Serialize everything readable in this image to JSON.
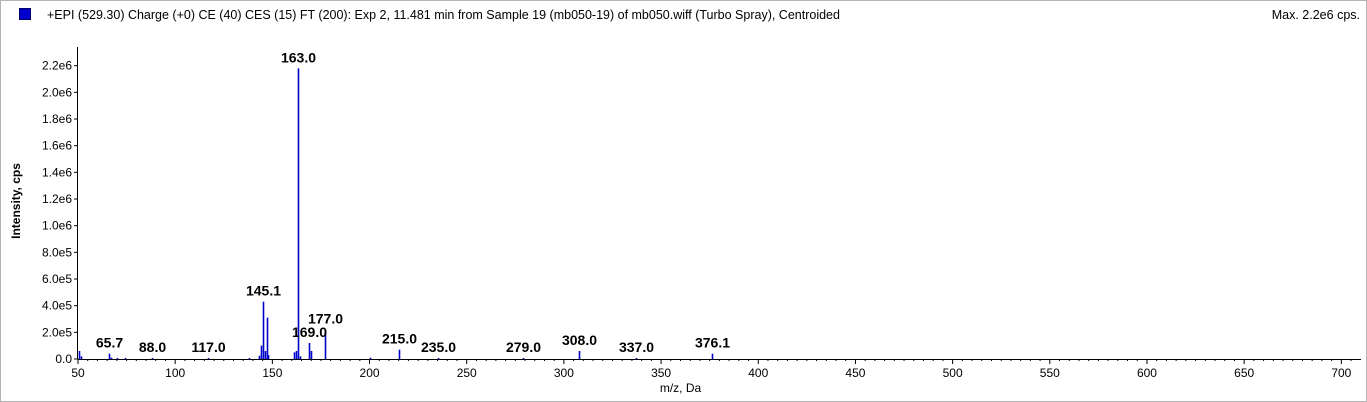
{
  "header": {
    "title": "+EPI (529.30) Charge (+0) CE (40) CES (15) FT (200): Exp 2, 11.481 min from Sample 19 (mb050-19) of mb050.wiff (Turbo Spray), Centroided",
    "max_label": "Max. 2.2e6 cps.",
    "series_color": "#0000cc"
  },
  "chart_data": {
    "type": "bar",
    "title": "+EPI (529.30) Charge (+0) CE (40) CES (15) FT (200): Exp 2, 11.481 min from Sample 19 (mb050-19) of mb050.wiff (Turbo Spray), Centroided",
    "xlabel": "m/z, Da",
    "ylabel": "Intensity, cps",
    "xlim": [
      50,
      706
    ],
    "ylim": [
      0,
      2250000
    ],
    "x_ticks": [
      50,
      100,
      150,
      200,
      250,
      300,
      350,
      400,
      450,
      500,
      550,
      600,
      650,
      700
    ],
    "x_tick_labels": [
      "50",
      "100",
      "150",
      "200",
      "250",
      "300",
      "350",
      "400",
      "450",
      "500",
      "550",
      "600",
      "650",
      "700"
    ],
    "y_ticks": [
      0,
      200000,
      400000,
      600000,
      800000,
      1000000,
      1200000,
      1400000,
      1600000,
      1800000,
      2000000,
      2200000
    ],
    "y_tick_labels": [
      "0.0",
      "2.0e5",
      "4.0e5",
      "6.0e5",
      "8.0e5",
      "1.0e6",
      "1.2e6",
      "1.4e6",
      "1.6e6",
      "1.8e6",
      "2.0e6",
      "2.2e6"
    ],
    "grid": false,
    "color": "#0000cc",
    "peaks": [
      {
        "mz": 50.5,
        "intensity": 60000
      },
      {
        "mz": 51.3,
        "intensity": 20000
      },
      {
        "mz": 65.7,
        "intensity": 40000,
        "label": "65.7"
      },
      {
        "mz": 67.2,
        "intensity": 10000
      },
      {
        "mz": 70.1,
        "intensity": 8000
      },
      {
        "mz": 74.0,
        "intensity": 8000
      },
      {
        "mz": 88.0,
        "intensity": 8000,
        "label": "88.0"
      },
      {
        "mz": 117.0,
        "intensity": 8000,
        "label": "117.0"
      },
      {
        "mz": 138.0,
        "intensity": 6000
      },
      {
        "mz": 143.0,
        "intensity": 25000
      },
      {
        "mz": 144.0,
        "intensity": 100000
      },
      {
        "mz": 145.1,
        "intensity": 430000,
        "label": "145.1"
      },
      {
        "mz": 146.1,
        "intensity": 60000
      },
      {
        "mz": 147.1,
        "intensity": 310000
      },
      {
        "mz": 148.0,
        "intensity": 30000
      },
      {
        "mz": 161.0,
        "intensity": 50000
      },
      {
        "mz": 162.0,
        "intensity": 60000
      },
      {
        "mz": 163.0,
        "intensity": 2180000,
        "label": "163.0"
      },
      {
        "mz": 164.0,
        "intensity": 20000
      },
      {
        "mz": 169.0,
        "intensity": 120000,
        "label": "169.0"
      },
      {
        "mz": 170.0,
        "intensity": 60000
      },
      {
        "mz": 177.0,
        "intensity": 220000,
        "label": "177.0"
      },
      {
        "mz": 200.0,
        "intensity": 10000
      },
      {
        "mz": 215.0,
        "intensity": 70000,
        "label": "215.0"
      },
      {
        "mz": 235.0,
        "intensity": 6000,
        "label": "235.0"
      },
      {
        "mz": 279.0,
        "intensity": 6000,
        "label": "279.0"
      },
      {
        "mz": 308.0,
        "intensity": 60000,
        "label": "308.0"
      },
      {
        "mz": 337.0,
        "intensity": 6000,
        "label": "337.0"
      },
      {
        "mz": 376.1,
        "intensity": 40000,
        "label": "376.1"
      }
    ]
  }
}
